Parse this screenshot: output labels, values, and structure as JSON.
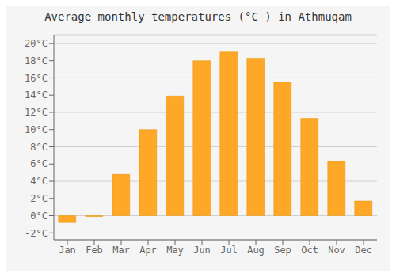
{
  "chart_data": {
    "type": "bar",
    "title": "Average monthly temperatures (°C ) in Athmuqam",
    "categories": [
      "Jan",
      "Feb",
      "Mar",
      "Apr",
      "May",
      "Jun",
      "Jul",
      "Aug",
      "Sep",
      "Oct",
      "Nov",
      "Dec"
    ],
    "values": [
      -0.8,
      -0.1,
      4.8,
      10.0,
      13.9,
      18.0,
      19.0,
      18.3,
      15.5,
      11.3,
      6.3,
      1.7
    ],
    "color": "#FFA726",
    "ylim": [
      -2.8,
      21.0
    ],
    "yticks": [
      {
        "value": -2,
        "label": "-2°C"
      },
      {
        "value": 0,
        "label": "0°C"
      },
      {
        "value": 2,
        "label": "2°C"
      },
      {
        "value": 4,
        "label": "4°C"
      },
      {
        "value": 6,
        "label": "6°C"
      },
      {
        "value": 8,
        "label": "8°C"
      },
      {
        "value": 10,
        "label": "10°C"
      },
      {
        "value": 12,
        "label": "12°C"
      },
      {
        "value": 14,
        "label": "14°C"
      },
      {
        "value": 16,
        "label": "16°C"
      },
      {
        "value": 18,
        "label": "18°C"
      },
      {
        "value": 20,
        "label": "20°C"
      }
    ],
    "grid": true
  }
}
